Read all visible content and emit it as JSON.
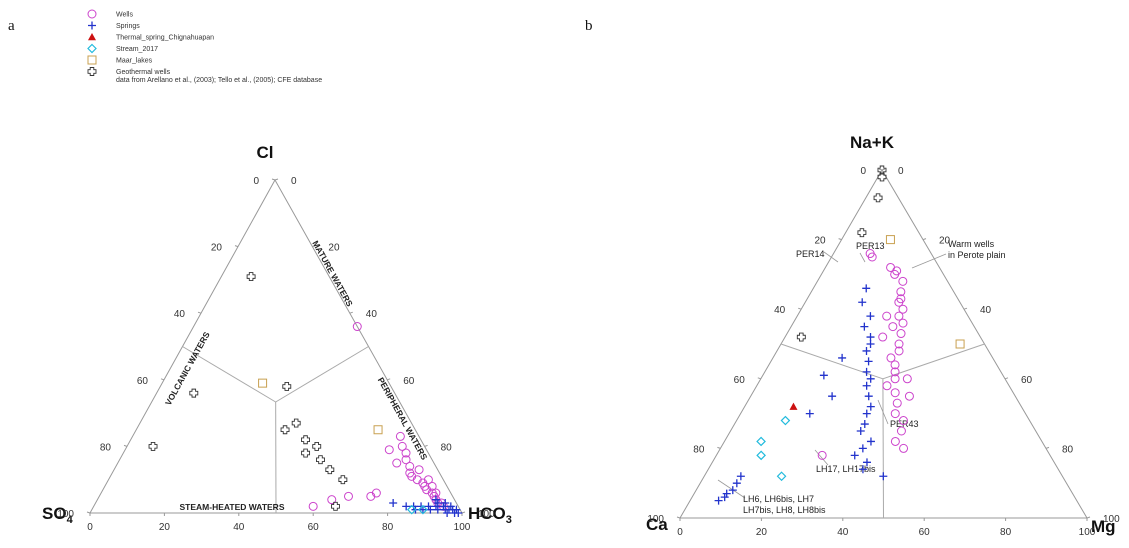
{
  "panels": {
    "a": "a",
    "b": "b"
  },
  "legend": [
    {
      "label": "Wells",
      "icon": "circle-icon",
      "color": "#cc44cc"
    },
    {
      "label": "Springs",
      "icon": "plus-icon",
      "color": "#2233cc"
    },
    {
      "label": "Thermal_spring_Chignahuapan",
      "icon": "triangle-icon",
      "color": "#cc1111"
    },
    {
      "label": "Stream_2017",
      "icon": "diamond-icon",
      "color": "#22bbdd"
    },
    {
      "label": "Maar_lakes",
      "icon": "square-icon",
      "color": "#c8a050"
    },
    {
      "label": "Geothermal wells",
      "icon": "open-cross-icon",
      "color": "#333333"
    }
  ],
  "legend_note": "data from Arellano et al., (2003); Tello et al., (2005); CFE database",
  "chart_data": [
    {
      "type": "scatter",
      "subtype": "ternary",
      "apices": {
        "top": "Cl",
        "left": "SO4",
        "right": "HCO3"
      },
      "ticks": [
        "0",
        "20",
        "40",
        "60",
        "80",
        "100"
      ],
      "zones": [
        "MATURE WATERS",
        "VOLCANIC WATERS",
        "PERIPHERAL WATERS",
        "STEAM-HEATED WATERS"
      ],
      "series": [
        {
          "name": "Wells",
          "color": "#cc44cc",
          "marker": "circle",
          "points": [
            [
              56,
              0,
              44
            ],
            [
              13,
              5,
              82
            ],
            [
              23,
              5,
              72
            ],
            [
              20,
              6,
              74
            ],
            [
              18,
              6,
              76
            ],
            [
              16,
              7,
              77
            ],
            [
              14,
              7,
              79
            ],
            [
              12,
              8,
              80
            ],
            [
              11,
              8,
              81
            ],
            [
              10,
              7,
              83
            ],
            [
              9,
              6,
              85
            ],
            [
              8,
              6,
              86
            ],
            [
              7,
              6,
              87
            ],
            [
              6,
              5,
              89
            ],
            [
              5,
              5,
              90
            ],
            [
              4,
              5,
              91
            ],
            [
              3,
              5,
              92
            ],
            [
              15,
              10,
              75
            ],
            [
              19,
              10,
              71
            ],
            [
              6,
              20,
              74
            ],
            [
              5,
              22,
              73
            ],
            [
              5,
              28,
              67
            ],
            [
              4,
              33,
              63
            ],
            [
              2,
              39,
              59
            ],
            [
              3,
              4,
              93
            ],
            [
              2,
              4,
              94
            ],
            [
              6,
              4,
              90
            ],
            [
              8,
              4,
              88
            ],
            [
              10,
              4,
              86
            ]
          ]
        },
        {
          "name": "Springs",
          "color": "#2233cc",
          "marker": "plus",
          "points": [
            [
              3,
              17,
              80
            ],
            [
              2,
              14,
              84
            ],
            [
              2,
              12,
              86
            ],
            [
              1,
              12,
              87
            ],
            [
              2,
              10,
              88
            ],
            [
              1,
              10,
              89
            ],
            [
              2,
              8,
              90
            ],
            [
              1,
              8,
              91
            ],
            [
              2,
              6,
              92
            ],
            [
              1,
              6,
              93
            ],
            [
              1,
              4,
              95
            ],
            [
              0,
              4,
              96
            ],
            [
              0,
              2,
              98
            ],
            [
              1,
              2,
              97
            ],
            [
              0,
              1,
              99
            ],
            [
              1,
              1,
              98
            ],
            [
              2,
              2,
              96
            ],
            [
              3,
              3,
              94
            ],
            [
              1,
              3,
              96
            ],
            [
              2,
              4,
              94
            ],
            [
              3,
              5,
              92
            ],
            [
              4,
              5,
              91
            ]
          ]
        },
        {
          "name": "Stream_2017",
          "color": "#22bbdd",
          "marker": "diamond",
          "points": [
            [
              1,
              13,
              86
            ],
            [
              1,
              10,
              89
            ]
          ]
        },
        {
          "name": "Maar_lakes",
          "color": "#c8a050",
          "marker": "square",
          "points": [
            [
              39,
              34,
              27
            ],
            [
              25,
              10,
              65
            ]
          ]
        },
        {
          "name": "Geothermal wells",
          "color": "#333333",
          "marker": "cross",
          "points": [
            [
              71,
              21,
              8
            ],
            [
              36,
              54,
              10
            ],
            [
              20,
              73,
              7
            ],
            [
              38,
              28,
              34
            ],
            [
              25,
              35,
              40
            ],
            [
              22,
              31,
              47
            ],
            [
              18,
              33,
              49
            ],
            [
              20,
              29,
              51
            ],
            [
              16,
              30,
              54
            ],
            [
              13,
              29,
              58
            ],
            [
              10,
              27,
              63
            ],
            [
              27,
              31,
              42
            ],
            [
              2,
              33,
              65
            ]
          ]
        }
      ]
    },
    {
      "type": "scatter",
      "subtype": "ternary",
      "apices": {
        "top": "Na+K",
        "left": "Ca",
        "right": "Mg"
      },
      "ticks": [
        "0",
        "20",
        "40",
        "60",
        "80",
        "100"
      ],
      "annotations": [
        "PER14",
        "PER13",
        "Warm wells\nin Perote plain",
        "PER43",
        "LH17, LH17bis",
        "LH6, LH6bis, LH7\nLH7bis, LH8, LH8bis"
      ],
      "series": [
        {
          "name": "Wells",
          "color": "#cc44cc",
          "marker": "circle",
          "points": [
            [
              68,
              11,
              21
            ],
            [
              65,
              13,
              22
            ],
            [
              63,
              14,
              23
            ],
            [
              62,
              15,
              23
            ],
            [
              60,
              15,
              25
            ],
            [
              58,
              17,
              25
            ],
            [
              56,
              17,
              27
            ],
            [
              70,
              12,
              18
            ],
            [
              72,
              12,
              16
            ],
            [
              55,
              20,
              25
            ],
            [
              53,
              19,
              28
            ],
            [
              50,
              21,
              29
            ],
            [
              48,
              22,
              30
            ],
            [
              46,
              25,
              29
            ],
            [
              44,
              25,
              31
            ],
            [
              42,
              26,
              32
            ],
            [
              40,
              27,
              33
            ],
            [
              38,
              30,
              32
            ],
            [
              36,
              29,
              35
            ],
            [
              33,
              30,
              37
            ],
            [
              30,
              32,
              38
            ],
            [
              28,
              31,
              41
            ],
            [
              25,
              33,
              42
            ],
            [
              22,
              36,
              42
            ],
            [
              20,
              35,
              45
            ],
            [
              35,
              26,
              39
            ],
            [
              40,
              24,
              36
            ],
            [
              52,
              24,
              24
            ],
            [
              58,
              20,
              22
            ],
            [
              18,
              56,
              26
            ],
            [
              75,
              15,
              10
            ],
            [
              76,
              15,
              9
            ],
            [
              71,
              11,
              18
            ]
          ]
        },
        {
          "name": "Springs",
          "color": "#2233cc",
          "marker": "plus",
          "points": [
            [
              66,
              21,
              13
            ],
            [
              62,
              24,
              14
            ],
            [
              58,
              24,
              18
            ],
            [
              55,
              27,
              18
            ],
            [
              52,
              27,
              21
            ],
            [
              50,
              28,
              22
            ],
            [
              48,
              30,
              22
            ],
            [
              45,
              31,
              24
            ],
            [
              42,
              33,
              25
            ],
            [
              40,
              33,
              27
            ],
            [
              38,
              35,
              27
            ],
            [
              35,
              36,
              29
            ],
            [
              32,
              37,
              31
            ],
            [
              30,
              39,
              31
            ],
            [
              27,
              41,
              32
            ],
            [
              25,
              43,
              32
            ],
            [
              22,
              42,
              36
            ],
            [
              20,
              45,
              35
            ],
            [
              18,
              48,
              34
            ],
            [
              16,
              46,
              38
            ],
            [
              14,
              48,
              38
            ],
            [
              12,
              44,
              44
            ],
            [
              35,
              45,
              20
            ],
            [
              41,
              44,
              15
            ],
            [
              46,
              37,
              17
            ],
            [
              30,
              53,
              17
            ],
            [
              12,
              79,
              9
            ],
            [
              10,
              81,
              9
            ],
            [
              8,
              83,
              9
            ],
            [
              7,
              85,
              8
            ],
            [
              6,
              86,
              8
            ],
            [
              5,
              88,
              7
            ]
          ]
        },
        {
          "name": "Thermal_spring_Chignahuapan",
          "color": "#cc1111",
          "marker": "triangle",
          "points": [
            [
              32,
              56,
              12
            ]
          ]
        },
        {
          "name": "Stream_2017",
          "color": "#22bbdd",
          "marker": "diamond",
          "points": [
            [
              28,
              60,
              12
            ],
            [
              22,
              69,
              9
            ],
            [
              12,
              69,
              19
            ],
            [
              18,
              71,
              11
            ]
          ]
        },
        {
          "name": "Maar_lakes",
          "color": "#c8a050",
          "marker": "square",
          "points": [
            [
              80,
              8,
              12
            ],
            [
              50,
              6,
              44
            ]
          ]
        },
        {
          "name": "Geothermal wells",
          "color": "#333333",
          "marker": "cross",
          "points": [
            [
              100,
              0,
              0
            ],
            [
              98,
              1,
              1
            ],
            [
              92,
              5,
              3
            ],
            [
              82,
              14,
              4
            ],
            [
              52,
              44,
              4
            ]
          ]
        }
      ]
    }
  ]
}
